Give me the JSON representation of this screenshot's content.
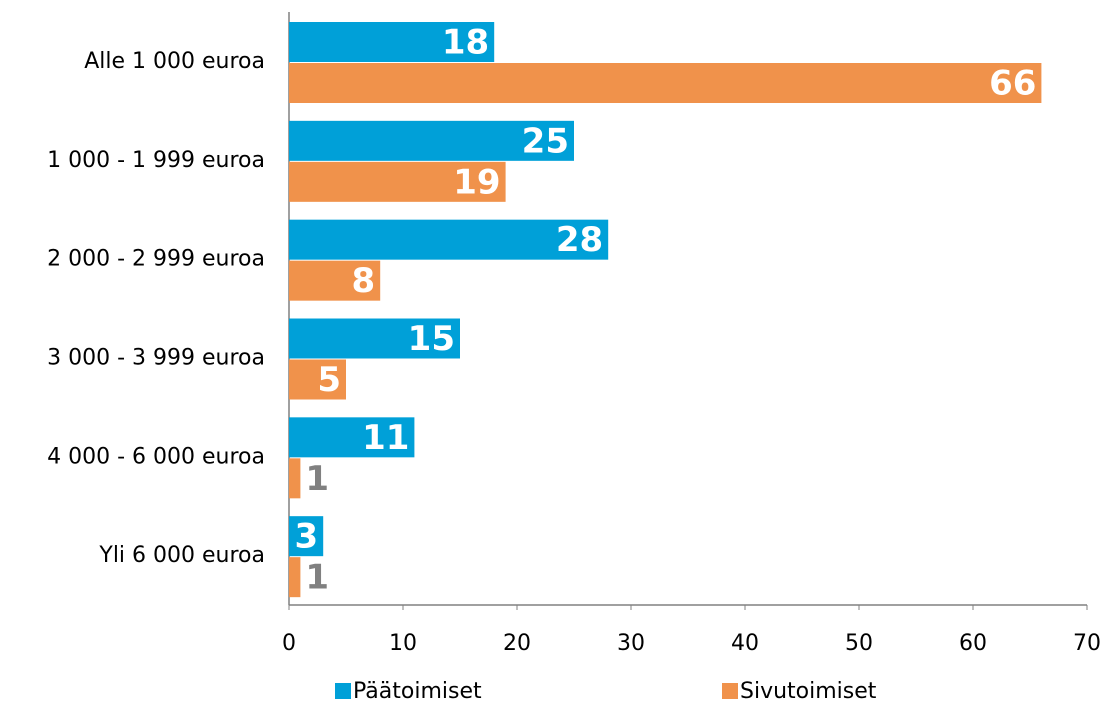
{
  "chart_data": {
    "type": "bar",
    "orientation": "horizontal",
    "categories": [
      "Alle 1 000 euroa",
      "1 000 - 1 999 euroa",
      "2 000 - 2 999 euroa",
      "3 000 - 3 999 euroa",
      "4 000 - 6 000 euroa",
      "Yli 6 000 euroa"
    ],
    "series": [
      {
        "name": "Päätoimiset",
        "color": "#00a0d8",
        "values": [
          18,
          25,
          28,
          15,
          11,
          3
        ]
      },
      {
        "name": "Sivutoimiset",
        "color": "#f0924b",
        "values": [
          66,
          19,
          8,
          5,
          1,
          1
        ]
      }
    ],
    "xlim": [
      0,
      70
    ],
    "xticks": [
      0,
      10,
      20,
      30,
      40,
      50,
      60,
      70
    ],
    "legend": "bottom"
  }
}
